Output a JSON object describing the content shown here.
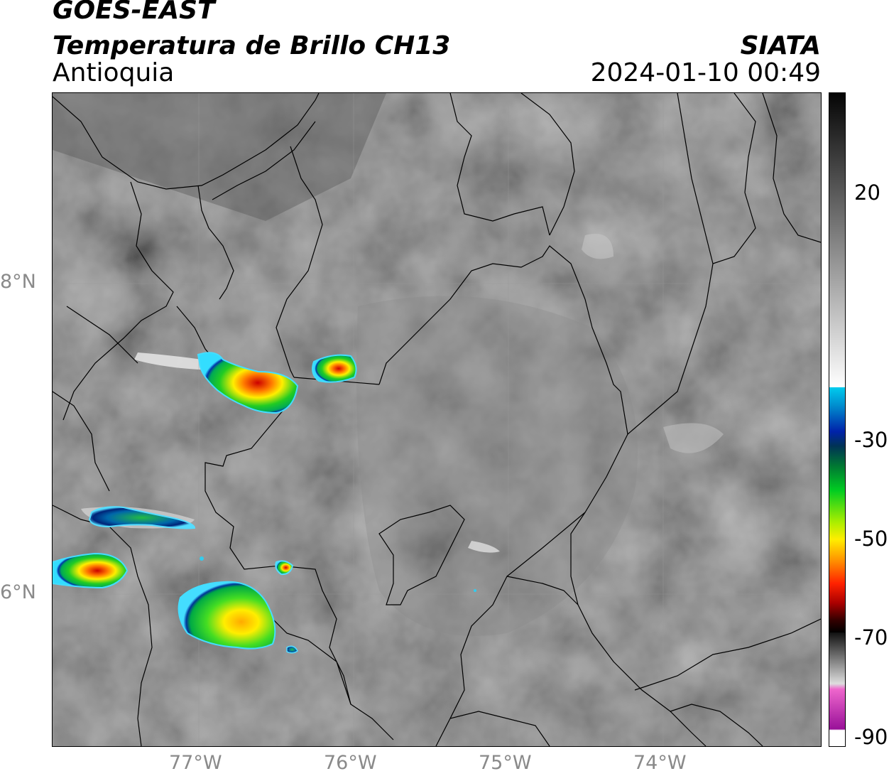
{
  "header": {
    "satellite": "GOES-EAST",
    "product": "Temperatura de Brillo CH13",
    "region": "Antioquia",
    "brand": "SIATA",
    "datetime": "2024-01-10 00:49"
  },
  "map": {
    "lat_labels": [
      "8°N",
      "6°N"
    ],
    "lon_labels": [
      "77°W",
      "76°W",
      "75°W",
      "74°W"
    ],
    "lon_range": [
      -77.95,
      -73.0
    ],
    "lat_range": [
      5.0,
      9.2
    ]
  },
  "colorbar": {
    "tick_labels": [
      "20",
      "-30",
      "-50",
      "-70",
      "-90"
    ],
    "range": [
      -90,
      40
    ],
    "colors": {
      "cyan": "#00ccee",
      "blue": "#0022aa",
      "green": "#00cc22",
      "yellow": "#ffee00",
      "orange": "#ff9900",
      "red": "#dd0000",
      "black": "#000000",
      "pink": "#ee66cc",
      "purple": "#991199"
    }
  }
}
